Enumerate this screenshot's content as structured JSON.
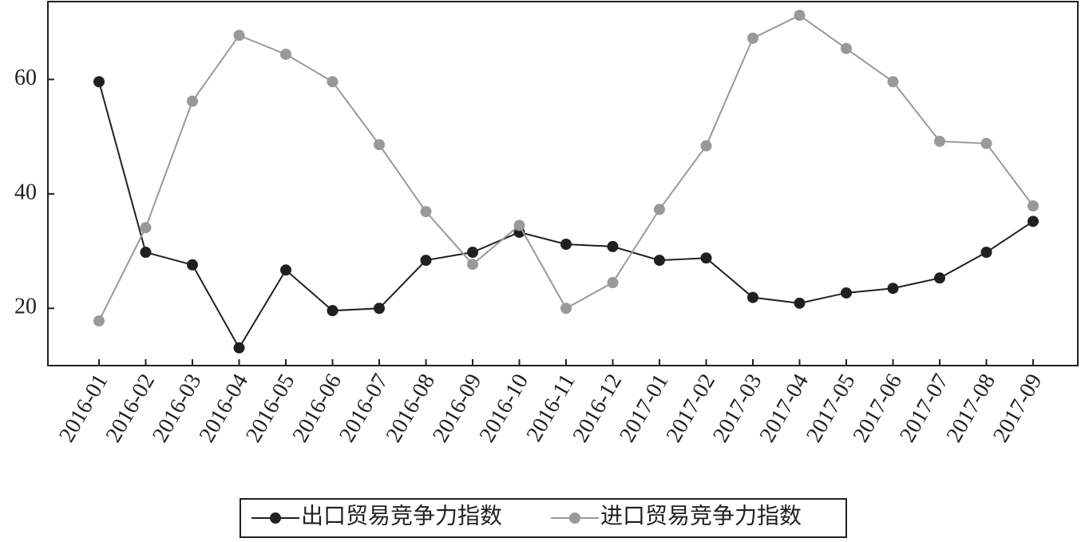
{
  "chart_data": {
    "type": "line",
    "categories": [
      "2016-01",
      "2016-02",
      "2016-03",
      "2016-04",
      "2016-05",
      "2016-06",
      "2016-07",
      "2016-08",
      "2016-09",
      "2016-10",
      "2016-11",
      "2016-12",
      "2017-01",
      "2017-02",
      "2017-03",
      "2017-04",
      "2017-05",
      "2017-06",
      "2017-07",
      "2017-08",
      "2017-09"
    ],
    "series": [
      {
        "name": "出口贸易竞争力指数",
        "color": "#231f20",
        "values": [
          59.6,
          29.8,
          27.6,
          13.1,
          26.7,
          19.6,
          20.0,
          28.4,
          29.8,
          33.3,
          31.2,
          30.8,
          28.4,
          28.8,
          21.9,
          20.9,
          22.7,
          23.5,
          25.3,
          29.8,
          35.2
        ]
      },
      {
        "name": "进口贸易竞争力指数",
        "color": "#999999",
        "values": [
          17.8,
          34.1,
          56.2,
          67.7,
          64.4,
          59.6,
          48.6,
          36.9,
          27.7,
          34.5,
          20.0,
          24.5,
          37.3,
          48.4,
          67.2,
          71.2,
          65.4,
          59.6,
          49.2,
          48.8,
          37.9
        ]
      }
    ],
    "ylim": [
      10,
      73.6
    ],
    "yticks": [
      20,
      40,
      60
    ],
    "legend": "bottom"
  }
}
